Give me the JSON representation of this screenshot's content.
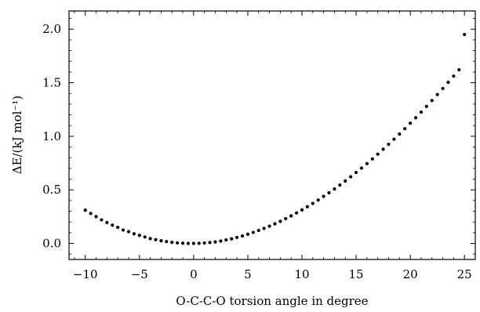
{
  "chart_data": {
    "type": "scatter",
    "xlabel": "O-C-C-O torsion angle in degree",
    "ylabel": "ΔE/(kJ mol⁻¹)",
    "xlim": [
      -11.5,
      26.0
    ],
    "ylim": [
      -0.15,
      2.17
    ],
    "xticks": [
      -10,
      -5,
      0,
      5,
      10,
      15,
      20,
      25
    ],
    "xtick_labels": [
      "−10",
      "−5",
      "0",
      "5",
      "10",
      "15",
      "20",
      "25"
    ],
    "yticks": [
      0.0,
      0.5,
      1.0,
      1.5,
      2.0
    ],
    "ytick_labels": [
      "0.0",
      "0.5",
      "1.0",
      "1.5",
      "2.0"
    ],
    "grid": false,
    "marker_color": "#000000",
    "series": [
      {
        "x": [
          -10.0,
          -9.5,
          -9.0,
          -8.5,
          -8.0,
          -7.5,
          -7.0,
          -6.5,
          -6.0,
          -5.5,
          -5.0,
          -4.5,
          -4.0,
          -3.5,
          -3.0,
          -2.5,
          -2.0,
          -1.5,
          -1.0,
          -0.5,
          0.0,
          0.5,
          1.0,
          1.5,
          2.0,
          2.5,
          3.0,
          3.5,
          4.0,
          4.5,
          5.0,
          5.5,
          6.0,
          6.5,
          7.0,
          7.5,
          8.0,
          8.5,
          9.0,
          9.5,
          10.0,
          10.5,
          11.0,
          11.5,
          12.0,
          12.5,
          13.0,
          13.5,
          14.0,
          14.5,
          15.0,
          15.5,
          16.0,
          16.5,
          17.0,
          17.5,
          18.0,
          18.5,
          19.0,
          19.5,
          20.0,
          20.5,
          21.0,
          21.5,
          22.0,
          22.5,
          23.0,
          23.5,
          24.0,
          24.5,
          25.0
        ],
        "y": [
          0.31,
          0.28,
          0.25,
          0.22,
          0.195,
          0.17,
          0.15,
          0.125,
          0.11,
          0.09,
          0.075,
          0.06,
          0.045,
          0.035,
          0.025,
          0.017,
          0.01,
          0.005,
          0.002,
          0.0,
          0.0,
          0.001,
          0.004,
          0.008,
          0.014,
          0.022,
          0.032,
          0.043,
          0.056,
          0.07,
          0.086,
          0.103,
          0.121,
          0.14,
          0.161,
          0.183,
          0.206,
          0.231,
          0.257,
          0.284,
          0.313,
          0.342,
          0.373,
          0.405,
          0.439,
          0.473,
          0.509,
          0.545,
          0.583,
          0.622,
          0.662,
          0.703,
          0.745,
          0.789,
          0.833,
          0.879,
          0.925,
          0.973,
          1.021,
          1.071,
          1.122,
          1.173,
          1.226,
          1.279,
          1.334,
          1.39,
          1.446,
          1.504,
          1.562,
          1.621,
          1.95
        ]
      }
    ]
  }
}
